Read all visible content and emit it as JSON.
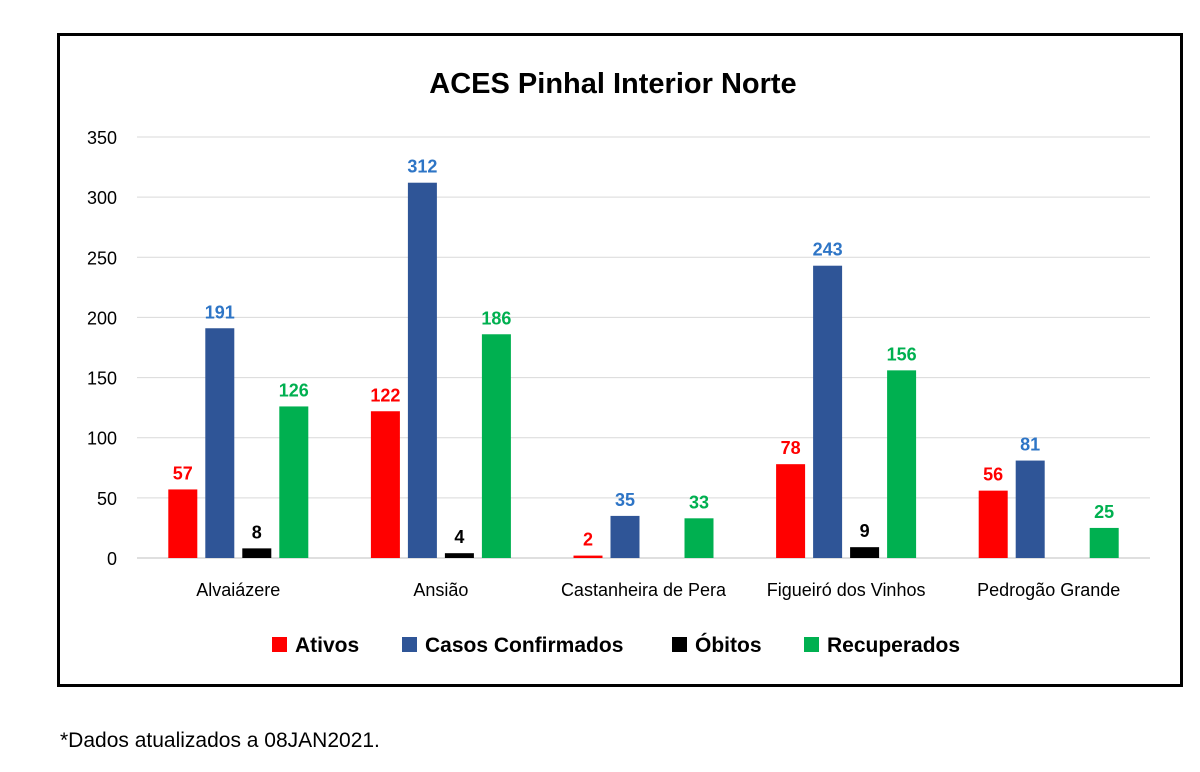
{
  "chart_data": {
    "type": "bar",
    "title": "ACES Pinhal Interior Norte",
    "xlabel": "",
    "ylabel": "",
    "ylim": [
      0,
      350
    ],
    "yticks": [
      0,
      50,
      100,
      150,
      200,
      250,
      300,
      350
    ],
    "grid": true,
    "legend_position": "bottom",
    "categories": [
      "Alvaiázere",
      "Ansião",
      "Castanheira de Pera",
      "Figueiró dos Vinhos",
      "Pedrogão Grande"
    ],
    "series": [
      {
        "name": "Ativos",
        "color": "#ff0000",
        "label_color": "#ff0000",
        "values": [
          57,
          122,
          2,
          78,
          56
        ]
      },
      {
        "name": "Casos Confirmados",
        "color": "#2f5597",
        "label_color": "#2e75c6",
        "values": [
          191,
          312,
          35,
          243,
          81
        ]
      },
      {
        "name": "Óbitos",
        "color": "#000000",
        "label_color": "#000000",
        "values": [
          8,
          4,
          null,
          9,
          null
        ]
      },
      {
        "name": "Recuperados",
        "color": "#00b050",
        "label_color": "#00b050",
        "values": [
          126,
          186,
          33,
          156,
          25
        ]
      }
    ]
  },
  "footnote": "*Dados atualizados a 08JAN2021."
}
